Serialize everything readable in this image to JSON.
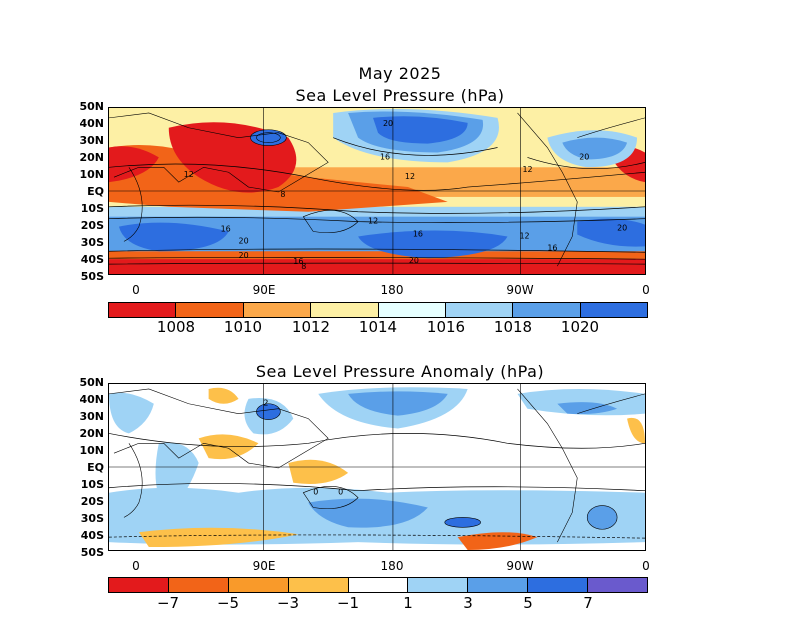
{
  "top_panel": {
    "title_line1": "May 2025",
    "title_line2": "Sea Level Pressure (hPa)",
    "colorbar_colors": [
      "#e31a1c",
      "#f26418",
      "#fba84a",
      "#fdf0a5",
      "#e6ffff",
      "#9fd3f5",
      "#5a9fe8",
      "#2d6ee0"
    ],
    "colorbar_labels": [
      "1008",
      "1010",
      "1012",
      "1014",
      "1016",
      "1018",
      "1020"
    ],
    "contour_labels": [
      "20",
      "16",
      "12",
      "8",
      "20",
      "16",
      "12",
      "20",
      "16",
      "12",
      "20",
      "16",
      "12",
      "8",
      "12",
      "16",
      "20",
      "20"
    ]
  },
  "bottom_panel": {
    "title": "Sea Level Pressure Anomaly (hPa)",
    "colorbar_colors": [
      "#e31a1c",
      "#f26418",
      "#f99a2a",
      "#fdc04a",
      "#ffffff",
      "#9fd3f5",
      "#5a9fe8",
      "#2d6ee0",
      "#6a5acd"
    ],
    "colorbar_labels": [
      "−7",
      "−5",
      "−3",
      "−1",
      "1",
      "3",
      "5",
      "7"
    ],
    "contour_labels": [
      "0",
      "0",
      "2"
    ]
  },
  "lat_labels": [
    "50N",
    "40N",
    "30N",
    "20N",
    "10N",
    "EQ",
    "10S",
    "20S",
    "30S",
    "40S",
    "50S"
  ],
  "lon_labels": [
    "0",
    "90E",
    "180",
    "90W",
    "0"
  ]
}
